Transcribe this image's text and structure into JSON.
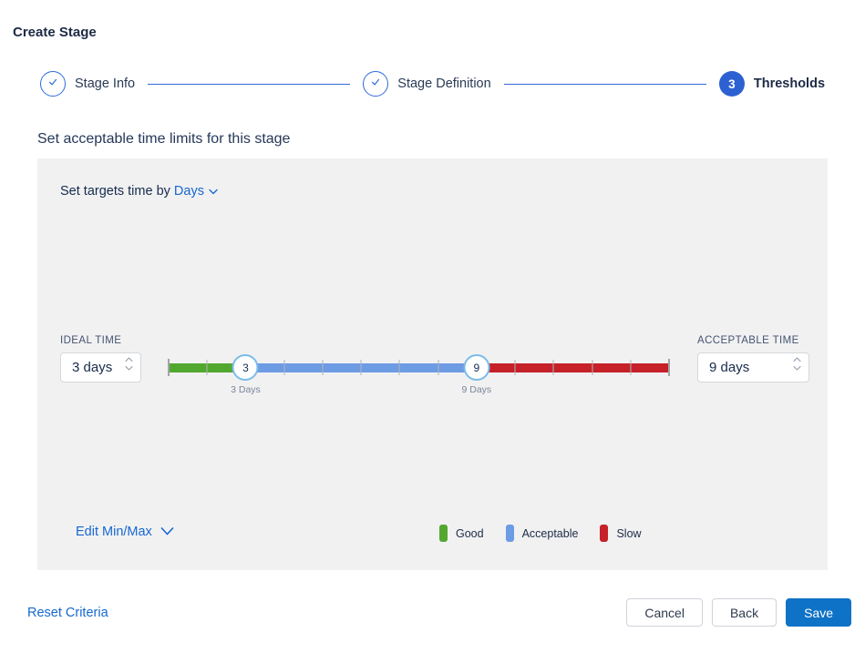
{
  "page": {
    "title": "Create Stage"
  },
  "stepper": {
    "steps": [
      {
        "label": "Stage Info",
        "state": "complete"
      },
      {
        "label": "Stage Definition",
        "state": "complete"
      },
      {
        "label": "Thresholds",
        "state": "active",
        "number": "3"
      }
    ]
  },
  "section": {
    "heading": "Set acceptable time limits for this stage"
  },
  "targets": {
    "prefix": "Set targets time by ",
    "unit": "Days"
  },
  "ideal": {
    "label": "IDEAL TIME",
    "value": "3 days"
  },
  "acceptable": {
    "label": "ACCEPTABLE TIME",
    "value": "9 days"
  },
  "slider": {
    "min": 1,
    "max": 14,
    "ideal": 3,
    "acceptable": 9,
    "ideal_handle": "3",
    "acceptable_handle": "9",
    "ideal_caption": "3 Days",
    "acceptable_caption": "9 Days",
    "colors": {
      "good": "#52a82f",
      "acceptable": "#6d9be4",
      "slow": "#c62128"
    }
  },
  "panel_footer": {
    "edit_link": "Edit Min/Max",
    "legend": [
      {
        "label": "Good",
        "color": "#52a82f"
      },
      {
        "label": "Acceptable",
        "color": "#6d9be4"
      },
      {
        "label": "Slow",
        "color": "#c62128"
      }
    ]
  },
  "footer": {
    "reset": "Reset Criteria",
    "cancel": "Cancel",
    "back": "Back",
    "save": "Save"
  }
}
